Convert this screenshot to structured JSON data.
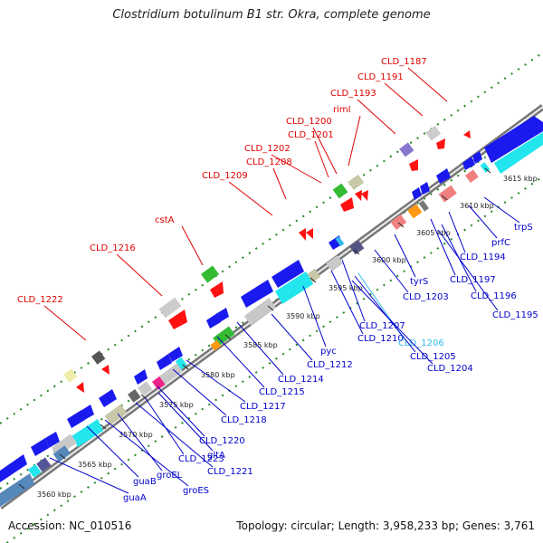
{
  "title": "Clostridium botulinum B1 str. Okra, complete genome",
  "footer": {
    "accession": "Accession: NC_010516",
    "summary": "Topology: circular; Length: 3,958,233 bp; Genes: 3,761"
  },
  "colors": {
    "red_label": "#e00000",
    "blue_label": "#0000cc",
    "cyan_label": "#33bbee",
    "gene_blue": "#1a1aee",
    "gene_cyan": "#22e5ee",
    "gene_gray": "#c8c8c8",
    "gene_red": "#ff1111",
    "gene_green": "#33bb33",
    "gene_pink": "#f08080",
    "backbone": "#888888"
  },
  "scale_ticks": [
    {
      "kbp": 3560,
      "label": "3560 kbp"
    },
    {
      "kbp": 3565,
      "label": "3565 kbp"
    },
    {
      "kbp": 3570,
      "label": "3570 kbp"
    },
    {
      "kbp": 3575,
      "label": "3575 kbp"
    },
    {
      "kbp": 3580,
      "label": "3580 kbp"
    },
    {
      "kbp": 3585,
      "label": "3585 kbp"
    },
    {
      "kbp": 3590,
      "label": "3590 kbp"
    },
    {
      "kbp": 3595,
      "label": "3595 kbp"
    },
    {
      "kbp": 3600,
      "label": "3600 kbp"
    },
    {
      "kbp": 3605,
      "label": "3605 kbp"
    },
    {
      "kbp": 3610,
      "label": "3610 kbp"
    },
    {
      "kbp": 3615,
      "label": "3615 kbp"
    }
  ],
  "top_labels": [
    {
      "text": "CLD_1187",
      "color": "#e00000"
    },
    {
      "text": "CLD_1191",
      "color": "#e00000"
    },
    {
      "text": "CLD_1193",
      "color": "#e00000"
    },
    {
      "text": "rimI",
      "color": "#e00000"
    },
    {
      "text": "CLD_1200",
      "color": "#e00000"
    },
    {
      "text": "CLD_1201",
      "color": "#e00000"
    },
    {
      "text": "CLD_1202",
      "color": "#e00000"
    },
    {
      "text": "CLD_1208",
      "color": "#e00000"
    },
    {
      "text": "CLD_1209",
      "color": "#e00000"
    },
    {
      "text": "cstA",
      "color": "#e00000"
    },
    {
      "text": "CLD_1216",
      "color": "#e00000"
    },
    {
      "text": "CLD_1222",
      "color": "#e00000"
    }
  ],
  "bottom_labels": [
    {
      "text": "trpS",
      "color": "#0000cc"
    },
    {
      "text": "prfC",
      "color": "#0000cc"
    },
    {
      "text": "CLD_1194",
      "color": "#0000cc"
    },
    {
      "text": "CLD_1197",
      "color": "#0000cc"
    },
    {
      "text": "CLD_1196",
      "color": "#0000cc"
    },
    {
      "text": "CLD_1195",
      "color": "#0000cc"
    },
    {
      "text": "tyrS",
      "color": "#0000cc"
    },
    {
      "text": "CLD_1203",
      "color": "#0000cc"
    },
    {
      "text": "CLD_1207",
      "color": "#0000cc"
    },
    {
      "text": "CLD_1210",
      "color": "#0000cc"
    },
    {
      "text": "CLD_1206",
      "color": "#33bbee"
    },
    {
      "text": "CLD_1205",
      "color": "#0000cc"
    },
    {
      "text": "CLD_1204",
      "color": "#0000cc"
    },
    {
      "text": "pyc",
      "color": "#0000cc"
    },
    {
      "text": "CLD_1212",
      "color": "#0000cc"
    },
    {
      "text": "CLD_1214",
      "color": "#0000cc"
    },
    {
      "text": "CLD_1215",
      "color": "#0000cc"
    },
    {
      "text": "CLD_1217",
      "color": "#0000cc"
    },
    {
      "text": "CLD_1218",
      "color": "#0000cc"
    },
    {
      "text": "CLD_1220",
      "color": "#0000cc"
    },
    {
      "text": "gltA",
      "color": "#0000cc"
    },
    {
      "text": "CLD_1223",
      "color": "#0000cc"
    },
    {
      "text": "CLD_1221",
      "color": "#0000cc"
    },
    {
      "text": "groEL",
      "color": "#0000cc"
    },
    {
      "text": "groES",
      "color": "#0000cc"
    },
    {
      "text": "guaB",
      "color": "#0000cc"
    },
    {
      "text": "guaA",
      "color": "#0000cc"
    }
  ]
}
